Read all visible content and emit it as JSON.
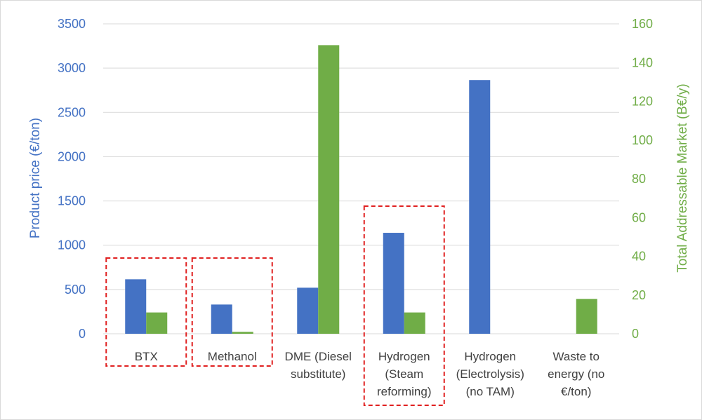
{
  "chart_data": {
    "type": "bar",
    "title": "",
    "categories": [
      [
        "BTX"
      ],
      [
        "Methanol"
      ],
      [
        "DME (Diesel",
        "substitute)"
      ],
      [
        "Hydrogen",
        "(Steam",
        "reforming)"
      ],
      [
        "Hydrogen",
        "(Electrolysis)",
        "(no TAM)"
      ],
      [
        "Waste to",
        "energy (no",
        "€/ton)"
      ]
    ],
    "series": [
      {
        "name": "",
        "axis": "left",
        "color": "#4472C4",
        "values": [
          615,
          330,
          520,
          1140,
          2865,
          0
        ]
      },
      {
        "name": "",
        "axis": "right",
        "color": "#70AD47",
        "values": [
          11,
          1,
          149,
          11,
          0,
          18
        ]
      }
    ],
    "y_left": {
      "label": "Product price (€/ton)",
      "min": 0,
      "max": 3500,
      "ticks": [
        0,
        500,
        1000,
        1500,
        2000,
        2500,
        3000,
        3500
      ]
    },
    "y_right": {
      "label": "Total Addressable Market (B€/y)",
      "min": 0,
      "max": 160,
      "ticks": [
        0,
        20,
        40,
        60,
        80,
        100,
        120,
        140,
        160
      ]
    },
    "highlighted_categories": [
      0,
      1,
      3
    ],
    "highlight_color": "#E02020",
    "grid": true,
    "legend": "none"
  }
}
